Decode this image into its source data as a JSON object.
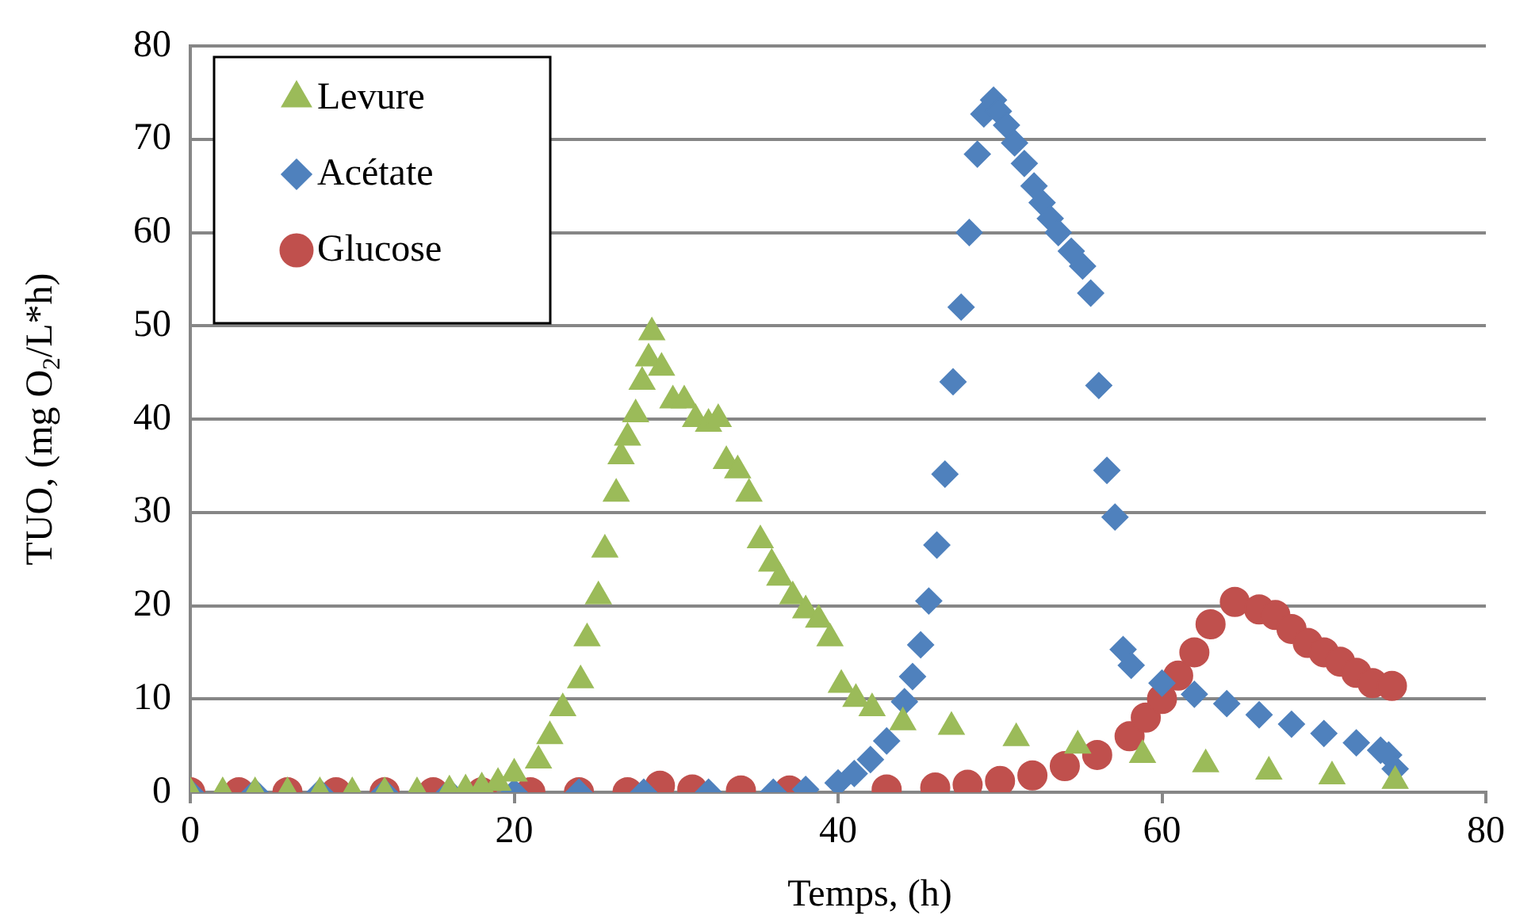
{
  "chart_data": {
    "type": "scatter",
    "xlabel": "Temps, (h)",
    "ylabel": "TUO, (mg O$_{2}$/L*h)",
    "xlim": [
      0,
      80
    ],
    "ylim": [
      0,
      80
    ],
    "xticks": [
      0,
      20,
      40,
      60,
      80
    ],
    "yticks": [
      0,
      10,
      20,
      30,
      40,
      50,
      60,
      70,
      80
    ],
    "grid": "y",
    "legend": "top left",
    "series": [
      {
        "name": "Levure",
        "color": "#9bbb59",
        "marker": "triangle",
        "x": [
          0,
          2,
          4,
          6,
          8,
          10,
          12,
          14,
          16,
          17,
          18,
          19,
          20,
          21.5,
          22.2,
          23,
          24.1,
          24.5,
          25.2,
          25.6,
          26.3,
          26.6,
          27,
          27.5,
          27.9,
          28.3,
          28.5,
          29.1,
          29.8,
          30.5,
          31.2,
          32,
          32.6,
          33.1,
          33.8,
          34.5,
          35.2,
          35.9,
          36.4,
          37.2,
          38,
          38.8,
          39.5,
          40.2,
          41.1,
          42.1,
          44,
          47,
          51,
          54.8,
          58.8,
          62.7,
          66.6,
          70.5,
          74.4
        ],
        "values": [
          0,
          0,
          0,
          0,
          0,
          0,
          0,
          0,
          0.2,
          0.3,
          0.5,
          1,
          2,
          3.4,
          6,
          9,
          12,
          16.5,
          21,
          26,
          32,
          36,
          38,
          40.5,
          44,
          46.5,
          49.3,
          45.5,
          42,
          42,
          40,
          39.5,
          40,
          35.5,
          34.5,
          32,
          27,
          24.5,
          23,
          21,
          19.5,
          18.5,
          16.5,
          11.5,
          10,
          9,
          7.5,
          7,
          5.8,
          5,
          4,
          3,
          2.2,
          1.7,
          1.2
        ]
      },
      {
        "name": "Acétate",
        "color": "#4f81bd",
        "marker": "diamond",
        "x": [
          0,
          4,
          8,
          12,
          16,
          20,
          24,
          28,
          32,
          36,
          38,
          40,
          41,
          42,
          43,
          44.1,
          44.6,
          45.1,
          45.6,
          46.1,
          46.6,
          47.1,
          47.6,
          48.1,
          48.6,
          49,
          49.6,
          49.9,
          50.4,
          50.9,
          51.5,
          52.1,
          52.6,
          53.1,
          53.6,
          54.4,
          55.1,
          55.6,
          56.1,
          56.6,
          57.1,
          57.6,
          58.1,
          60,
          62,
          64,
          66,
          68,
          70,
          72,
          73.5,
          74,
          74.4
        ],
        "values": [
          0,
          0,
          0,
          0,
          0,
          0,
          0,
          0,
          0,
          0,
          0.3,
          1,
          2,
          3.5,
          5.5,
          9.7,
          12.4,
          15.8,
          20.5,
          26.5,
          34.1,
          44,
          52,
          60,
          68.4,
          72.7,
          74.2,
          73,
          71.5,
          69.6,
          67.4,
          65,
          63.2,
          61.5,
          60,
          58,
          56.4,
          53.5,
          43.6,
          34.5,
          29.5,
          15.3,
          13.6,
          11.7,
          10.5,
          9.5,
          8.3,
          7.3,
          6.3,
          5.3,
          4.5,
          4,
          2.5
        ]
      },
      {
        "name": "Glucose",
        "color": "#c0504d",
        "marker": "circle",
        "x": [
          0,
          3,
          6,
          9,
          12,
          15,
          18,
          21,
          24,
          27,
          29,
          31,
          34,
          37,
          43,
          46,
          48,
          50,
          52,
          54,
          56,
          58,
          59,
          60,
          61,
          62,
          63,
          64.5,
          66,
          67,
          68,
          69,
          70,
          71,
          72,
          73,
          74.2
        ],
        "values": [
          0,
          0,
          0,
          0,
          0,
          0,
          0,
          0,
          0,
          0,
          0.7,
          0.3,
          0.2,
          0.2,
          0.3,
          0.5,
          0.8,
          1.2,
          1.8,
          2.8,
          4,
          6,
          8,
          10,
          12.5,
          15,
          18,
          20.4,
          19.6,
          19,
          17.5,
          16,
          15,
          14,
          12.8,
          11.7,
          11.4
        ]
      }
    ]
  }
}
